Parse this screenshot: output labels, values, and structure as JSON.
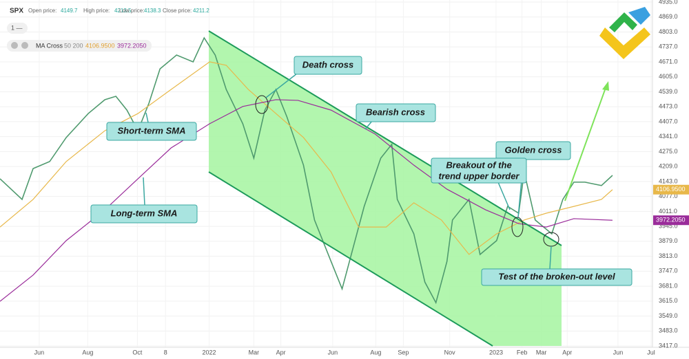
{
  "header": {
    "symbol": "SPX",
    "fields": [
      {
        "label": "Open price:",
        "value": "4149.7"
      },
      {
        "label": "High price:",
        "value": "4213.5"
      },
      {
        "label": "Low price:",
        "value": "4138.3"
      },
      {
        "label": "Close price:",
        "value": "4211.2"
      }
    ],
    "interval": "1 —",
    "indicator": "MA Cross",
    "indicator_params": "50 200",
    "ma_values": [
      "4106.9500",
      "3972.2050"
    ]
  },
  "annotations": {
    "death_cross": "Death cross",
    "bearish_cross": "Bearish cross",
    "short_sma": "Short-term SMA",
    "golden_cross": "Golden cross",
    "breakout": [
      "Breakout of the",
      "trend upper border"
    ],
    "long_sma": "Long-term SMA",
    "test": "Test of the broken-out level"
  },
  "chart_data": {
    "type": "line",
    "xlim": [
      0,
      118
    ],
    "xticks": [
      {
        "value": 7.1,
        "label": "Jun"
      },
      {
        "value": 15.9,
        "label": "Aug"
      },
      {
        "value": 24.9,
        "label": "Oct"
      },
      {
        "value": 30,
        "label": "8"
      },
      {
        "value": 37.9,
        "label": "2022"
      },
      {
        "value": 46,
        "label": "Mar"
      },
      {
        "value": 50.9,
        "label": "Apr"
      },
      {
        "value": 60.3,
        "label": "Jun"
      },
      {
        "value": 68.1,
        "label": "Aug"
      },
      {
        "value": 73.1,
        "label": "Sep"
      },
      {
        "value": 81.5,
        "label": "Nov"
      },
      {
        "value": 89.9,
        "label": "2023"
      },
      {
        "value": 94.6,
        "label": "Feb"
      },
      {
        "value": 98.1,
        "label": "Mar"
      },
      {
        "value": 102.8,
        "label": "Apr"
      },
      {
        "value": 112,
        "label": "Jun"
      },
      {
        "value": 118,
        "label": "Jul"
      }
    ],
    "ylim": [
      3399,
      4944
    ],
    "yticks": [
      {
        "value": 4935,
        "label": "4935.0"
      },
      {
        "value": 4869,
        "label": "4869.0"
      },
      {
        "value": 4803,
        "label": "4803.0"
      },
      {
        "value": 4737,
        "label": "4737.0"
      },
      {
        "value": 4671,
        "label": "4671.0"
      },
      {
        "value": 4605,
        "label": "4605.0"
      },
      {
        "value": 4539,
        "label": "4539.0"
      },
      {
        "value": 4473,
        "label": "4473.0"
      },
      {
        "value": 4407,
        "label": "4407.0"
      },
      {
        "value": 4341,
        "label": "4341.0"
      },
      {
        "value": 4275,
        "label": "4275.0"
      },
      {
        "value": 4209,
        "label": "4209.0"
      },
      {
        "value": 4143,
        "label": "4143.0"
      },
      {
        "value": 4077,
        "label": "4077.0"
      },
      {
        "value": 4011,
        "label": "4011.0"
      },
      {
        "value": 3945,
        "label": "3945.0"
      },
      {
        "value": 3879,
        "label": "3879.0"
      },
      {
        "value": 3813,
        "label": "3813.0"
      },
      {
        "value": 3747,
        "label": "3747.0"
      },
      {
        "value": 3681,
        "label": "3681.0"
      },
      {
        "value": 3615,
        "label": "3615.0"
      },
      {
        "value": 3549,
        "label": "3549.0"
      },
      {
        "value": 3483,
        "label": "3483.0"
      },
      {
        "value": 3417,
        "label": "3417.0"
      }
    ],
    "grid": true,
    "series": [
      {
        "color": "#4f9a6e",
        "x": [
          0,
          4,
          6,
          9,
          12,
          16,
          19,
          21,
          23,
          25,
          27,
          29,
          32,
          35,
          37,
          39,
          41,
          44,
          46,
          48,
          50,
          52,
          55,
          57,
          60,
          62,
          64,
          66,
          69,
          71,
          72,
          75,
          77,
          79,
          81,
          82,
          85,
          87,
          90,
          92,
          94,
          95,
          97,
          100,
          102,
          104,
          106,
          109,
          111
        ],
        "values": [
          4155,
          4064,
          4200,
          4231,
          4337,
          4443,
          4504,
          4519,
          4458,
          4367,
          4489,
          4640,
          4701,
          4671,
          4777,
          4701,
          4549,
          4398,
          4246,
          4458,
          4549,
          4428,
          4215,
          3973,
          3790,
          3669,
          3851,
          4033,
          4246,
          4307,
          4064,
          3912,
          3699,
          3608,
          3790,
          3973,
          4064,
          3821,
          3882,
          4033,
          4003,
          4185,
          3973,
          3912,
          4064,
          4140,
          4140,
          4125,
          4170
        ]
      },
      {
        "color": "#e8b84a",
        "x": [
          0,
          6,
          12,
          19,
          25,
          31,
          38,
          41,
          45,
          50,
          55,
          60,
          65,
          70,
          75,
          80,
          85,
          90,
          95,
          99,
          104,
          109,
          111
        ],
        "values": [
          3942,
          4064,
          4231,
          4367,
          4443,
          4549,
          4671,
          4656,
          4549,
          4443,
          4337,
          4185,
          3942,
          3942,
          4049,
          3973,
          3821,
          3912,
          3973,
          4003,
          4033,
          4064,
          4107
        ]
      },
      {
        "color": "#9a2c9a",
        "x": [
          0,
          6,
          12,
          19,
          25,
          31,
          38,
          44,
          50,
          54,
          60,
          68,
          75,
          81,
          88,
          94,
          99,
          104,
          111
        ],
        "values": [
          3614,
          3730,
          3882,
          4018,
          4155,
          4291,
          4398,
          4474,
          4504,
          4501,
          4458,
          4352,
          4215,
          4109,
          4018,
          3957,
          3942,
          3979,
          3972
        ]
      }
    ]
  }
}
